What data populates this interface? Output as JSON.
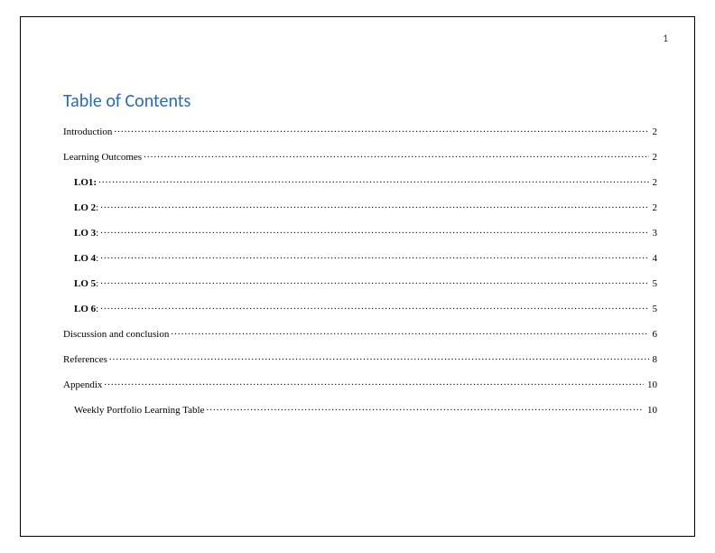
{
  "page": {
    "number": "1",
    "border_color": "#000000",
    "background_color": "#ffffff"
  },
  "toc": {
    "title": "Table of Contents",
    "title_color": "#2e6ca4",
    "title_fontsize": 20,
    "entry_fontsize": 11,
    "entries": [
      {
        "label_plain": "Introduction",
        "label_bold": "",
        "suffix": "",
        "page": "2",
        "level": 1
      },
      {
        "label_plain": "Learning Outcomes",
        "label_bold": "",
        "suffix": "",
        "page": "2",
        "level": 1
      },
      {
        "label_plain": "",
        "label_bold": "LO1:",
        "suffix": "",
        "page": "2",
        "level": 2
      },
      {
        "label_plain": "",
        "label_bold": "LO 2",
        "suffix": ":",
        "page": "2",
        "level": 2
      },
      {
        "label_plain": "",
        "label_bold": "LO 3",
        "suffix": ":",
        "page": "3",
        "level": 2
      },
      {
        "label_plain": "",
        "label_bold": "LO 4",
        "suffix": ":",
        "page": "4",
        "level": 2
      },
      {
        "label_plain": "",
        "label_bold": "LO 5",
        "suffix": ":",
        "page": "5",
        "level": 2
      },
      {
        "label_plain": "",
        "label_bold": "LO 6",
        "suffix": ":",
        "page": "5",
        "level": 2
      },
      {
        "label_plain": "Discussion and conclusion",
        "label_bold": "",
        "suffix": "",
        "page": "6",
        "level": 1
      },
      {
        "label_plain": "References",
        "label_bold": "",
        "suffix": "",
        "page": "8",
        "level": 1
      },
      {
        "label_plain": "Appendix",
        "label_bold": "",
        "suffix": "",
        "page": "10",
        "level": 1
      },
      {
        "label_plain": "Weekly Portfolio Learning Table",
        "label_bold": "",
        "suffix": "",
        "page": "10",
        "level": 2
      }
    ]
  }
}
